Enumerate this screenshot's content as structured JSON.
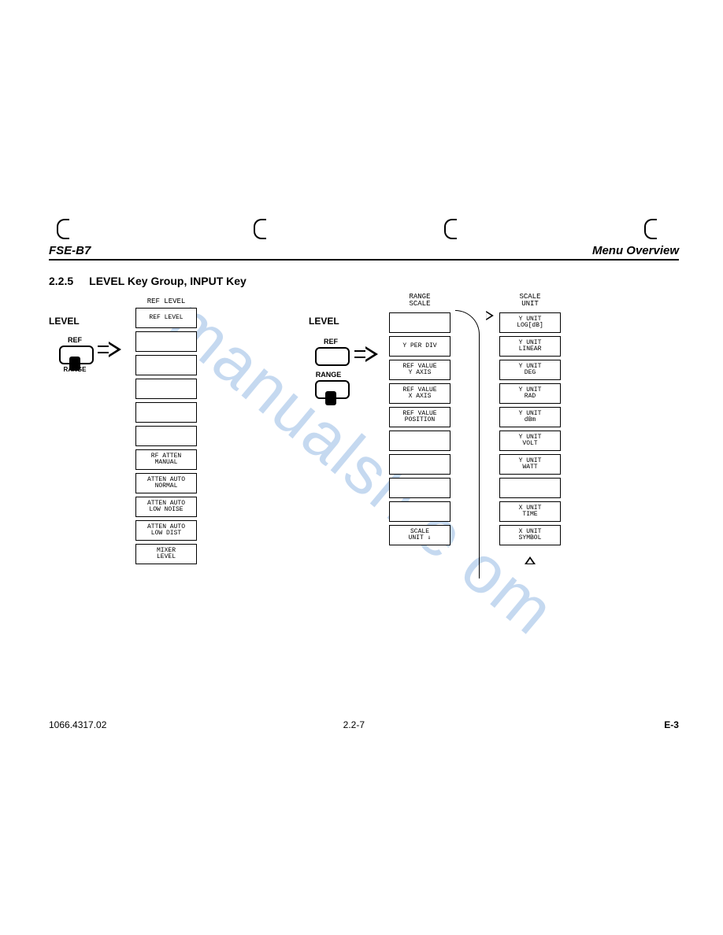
{
  "header": {
    "left": "FSE-B7",
    "right": "Menu Overview"
  },
  "section": {
    "num": "2.2.5",
    "title": "LEVEL Key Group, INPUT Key"
  },
  "watermark": "manualsh   e   om",
  "footer": {
    "left": "1066.4317.02",
    "center": "2.2-7",
    "right": "E-3"
  },
  "groupA": {
    "label": "LEVEL",
    "keys": {
      "ref": "REF",
      "range": "RANGE"
    },
    "col_title": "REF LEVEL",
    "softkeys": [
      "REF LEVEL",
      "",
      "",
      "",
      "",
      "",
      "RF ATTEN\nMANUAL",
      "ATTEN AUTO\nNORMAL",
      "ATTEN AUTO\nLOW NOISE",
      "ATTEN AUTO\nLOW DIST",
      "MIXER\nLEVEL"
    ]
  },
  "groupB": {
    "label": "LEVEL",
    "keys": {
      "ref": "REF",
      "range": "RANGE"
    },
    "colB_title": "RANGE\nSCALE",
    "colB_softkeys": [
      "",
      "Y PER DIV",
      "REF VALUE\nY AXIS",
      "REF VALUE\nX AXIS",
      "REF VALUE\nPOSITION",
      "",
      "",
      "",
      "",
      "SCALE\nUNIT ⇓"
    ],
    "colC_title": "SCALE\nUNIT",
    "colC_softkeys": [
      "Y UNIT\nLOG[dB]",
      "Y UNIT\nLINEAR",
      "Y UNIT\nDEG",
      "Y UNIT\nRAD",
      "Y UNIT\ndBm",
      "Y UNIT\nVOLT",
      "Y UNIT\nWATT",
      "",
      "X UNIT\nTIME",
      "X UNIT\nSYMBOL"
    ]
  }
}
